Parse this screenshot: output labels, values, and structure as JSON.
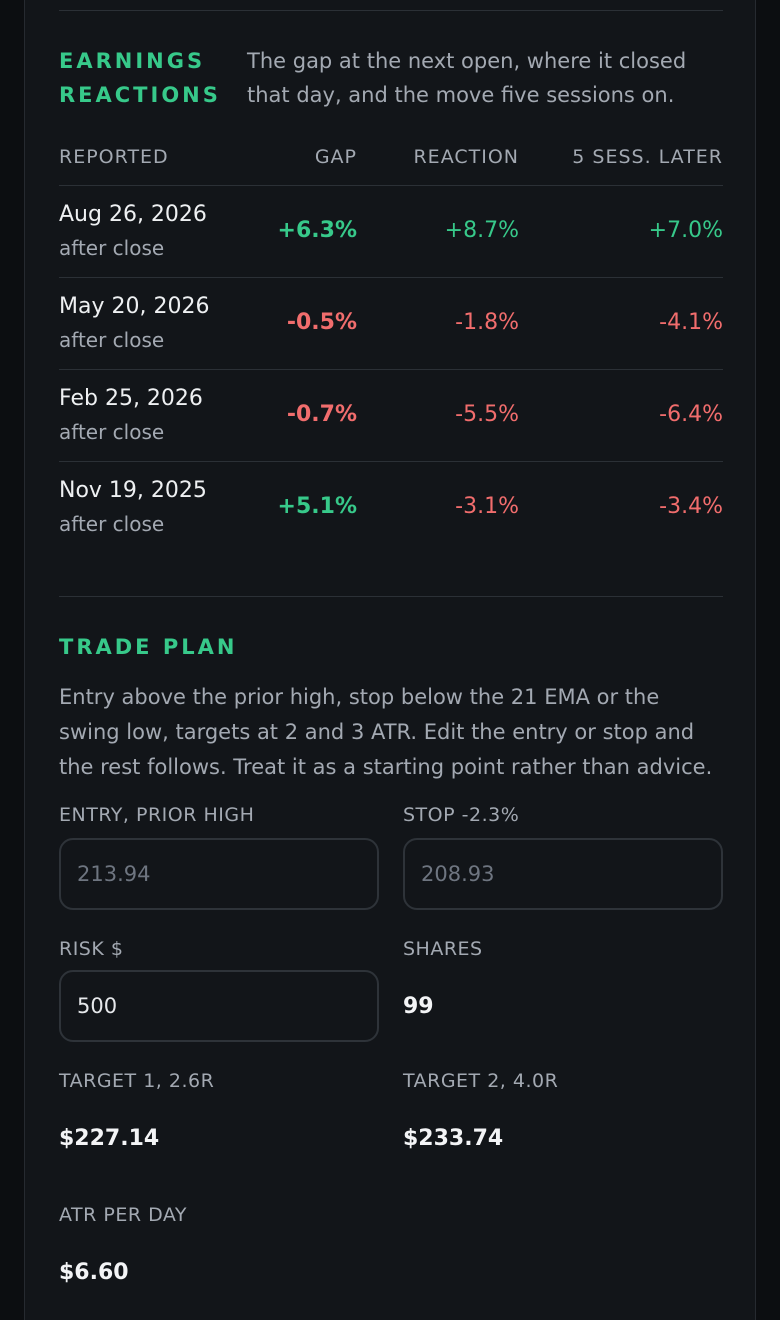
{
  "earnings": {
    "title": "EARNINGS REACTIONS",
    "description": "The gap at the next open, where it closed that day, and the move five sessions on.",
    "columns": {
      "reported": "REPORTED",
      "gap": "GAP",
      "reaction": "REACTION",
      "later": "5 SESS. LATER"
    },
    "rows": [
      {
        "date": "Aug 26, 2026",
        "timing": "after close",
        "gap": "+6.3%",
        "reaction": "+8.7%",
        "later": "+7.0%"
      },
      {
        "date": "May 20, 2026",
        "timing": "after close",
        "gap": "-0.5%",
        "reaction": "-1.8%",
        "later": "-4.1%"
      },
      {
        "date": "Feb 25, 2026",
        "timing": "after close",
        "gap": "-0.7%",
        "reaction": "-5.5%",
        "later": "-6.4%"
      },
      {
        "date": "Nov 19, 2025",
        "timing": "after close",
        "gap": "+5.1%",
        "reaction": "-3.1%",
        "later": "-3.4%"
      }
    ]
  },
  "trade_plan": {
    "title": "TRADE PLAN",
    "description": "Entry above the prior high, stop below the 21 EMA or the swing low, targets at 2 and 3 ATR. Edit the entry or stop and the rest follows. Treat it as a starting point rather than advice.",
    "entry": {
      "label": "ENTRY, PRIOR HIGH",
      "placeholder": "213.94",
      "value": ""
    },
    "stop": {
      "label": "STOP -2.3%",
      "placeholder": "208.93",
      "value": ""
    },
    "risk": {
      "label": "RISK $",
      "value": "500"
    },
    "shares": {
      "label": "SHARES",
      "value": "99"
    },
    "target1": {
      "label": "TARGET 1, 2.6R",
      "value": "$227.14"
    },
    "target2": {
      "label": "TARGET 2, 4.0R",
      "value": "$233.74"
    },
    "atr": {
      "label": "ATR PER DAY",
      "value": "$6.60"
    }
  },
  "colors": {
    "accent": "#37c98a",
    "positive": "#37c98a",
    "negative": "#f16d6d",
    "background": "#121519"
  }
}
